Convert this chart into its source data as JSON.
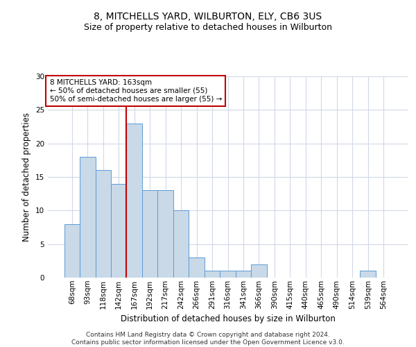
{
  "title": "8, MITCHELLS YARD, WILBURTON, ELY, CB6 3US",
  "subtitle": "Size of property relative to detached houses in Wilburton",
  "xlabel": "Distribution of detached houses by size in Wilburton",
  "ylabel": "Number of detached properties",
  "bar_labels": [
    "68sqm",
    "93sqm",
    "118sqm",
    "142sqm",
    "167sqm",
    "192sqm",
    "217sqm",
    "242sqm",
    "266sqm",
    "291sqm",
    "316sqm",
    "341sqm",
    "366sqm",
    "390sqm",
    "415sqm",
    "440sqm",
    "465sqm",
    "490sqm",
    "514sqm",
    "539sqm",
    "564sqm"
  ],
  "bar_values": [
    8,
    18,
    16,
    14,
    23,
    13,
    13,
    10,
    3,
    1,
    1,
    1,
    2,
    0,
    0,
    0,
    0,
    0,
    0,
    1,
    0
  ],
  "bar_color": "#c9d9e8",
  "bar_edge_color": "#5b9bd5",
  "vline_color": "#c00000",
  "annotation_text": "8 MITCHELLS YARD: 163sqm\n← 50% of detached houses are smaller (55)\n50% of semi-detached houses are larger (55) →",
  "annotation_box_color": "#c00000",
  "ylim": [
    0,
    30
  ],
  "yticks": [
    0,
    5,
    10,
    15,
    20,
    25,
    30
  ],
  "grid_color": "#d0d8e8",
  "footer_text": "Contains HM Land Registry data © Crown copyright and database right 2024.\nContains public sector information licensed under the Open Government Licence v3.0.",
  "title_fontsize": 10,
  "subtitle_fontsize": 9,
  "xlabel_fontsize": 8.5,
  "ylabel_fontsize": 8.5,
  "tick_fontsize": 7.5,
  "footer_fontsize": 6.5,
  "annotation_fontsize": 7.5
}
